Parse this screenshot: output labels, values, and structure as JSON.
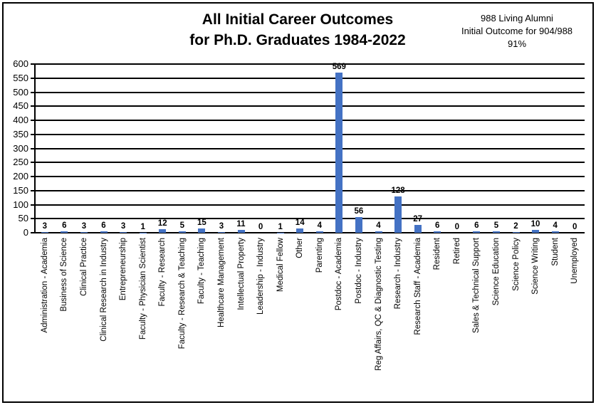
{
  "title": {
    "line1": "All Initial Career Outcomes",
    "line2": "for Ph.D. Graduates 1984-2022"
  },
  "annotation": {
    "line1": "988 Living Alumni",
    "line2": "Initial Outcome for 904/988",
    "line3": "91%"
  },
  "colors": {
    "bar": "#4472C4",
    "gridline": "#000000",
    "text": "#000000",
    "background": "#FFFFFF"
  },
  "chart_data": {
    "type": "bar",
    "title": "All Initial Career Outcomes for Ph.D. Graduates 1984-2022",
    "categories": [
      "Administration - Academia",
      "Business of Science",
      "Clinical Practice",
      "Clinical Research in Industry",
      "Entrepreneurship",
      "Faculty - Physician Scientist",
      "Faculty - Research",
      "Faculty - Research & Teaching",
      "Faculty - Teaching",
      "Healthcare Management",
      "Intellectual Property",
      "Leadership - Industry",
      "Medical Fellow",
      "Other",
      "Parenting",
      "Postdoc - Academia",
      "Postdoc - Industry",
      "Reg Affairs, QC & Diagnostic Testing",
      "Research - Industry",
      "Research Staff - Academia",
      "Resident",
      "Retired",
      "Sales & Technical Support",
      "Science Education",
      "Science Policy",
      "Science Writing",
      "Student",
      "Unemployed"
    ],
    "values": [
      3,
      6,
      3,
      6,
      3,
      1,
      12,
      5,
      15,
      3,
      11,
      0,
      1,
      14,
      4,
      569,
      56,
      4,
      128,
      27,
      6,
      0,
      6,
      5,
      2,
      10,
      4,
      0
    ],
    "xlabel": "",
    "ylabel": "",
    "ylim": [
      0,
      600
    ],
    "ytick_interval": 50,
    "grid": true,
    "data_labels": true,
    "legend": "none"
  }
}
